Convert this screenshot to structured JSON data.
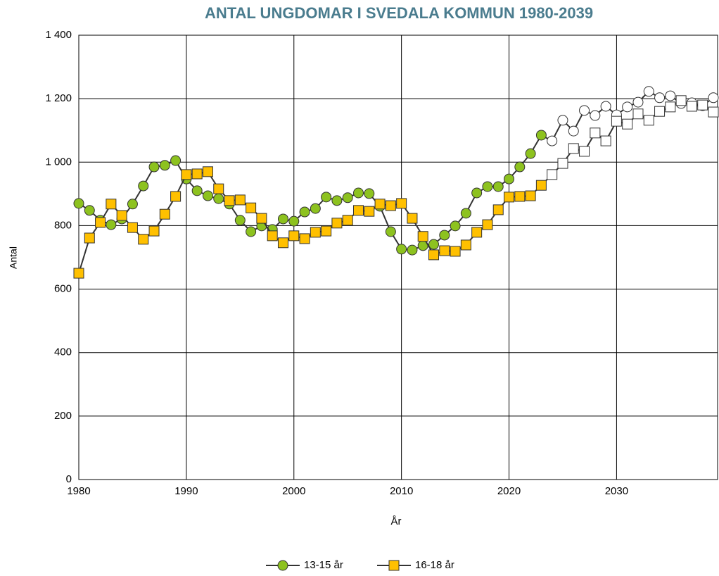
{
  "chart_data": {
    "type": "line",
    "title": "ANTAL UNGDOMAR I SVEDALA KOMMUN 1980-2039",
    "xlabel": "År",
    "ylabel": "Antal",
    "x": [
      1980,
      1981,
      1982,
      1983,
      1984,
      1985,
      1986,
      1987,
      1988,
      1989,
      1990,
      1991,
      1992,
      1993,
      1994,
      1995,
      1996,
      1997,
      1998,
      1999,
      2000,
      2001,
      2002,
      2003,
      2004,
      2005,
      2006,
      2007,
      2008,
      2009,
      2010,
      2011,
      2012,
      2013,
      2014,
      2015,
      2016,
      2017,
      2018,
      2019,
      2020,
      2021,
      2022,
      2023,
      2024,
      2025,
      2026,
      2027,
      2028,
      2029,
      2030,
      2031,
      2032,
      2033,
      2034,
      2035,
      2036,
      2037,
      2038,
      2039
    ],
    "forecast_start": 2024,
    "series": [
      {
        "name": "13-15 år",
        "color": "#8dc21f",
        "marker": "circle",
        "values": [
          870,
          848,
          817,
          803,
          821,
          868,
          925,
          985,
          990,
          1005,
          947,
          910,
          894,
          885,
          868,
          817,
          781,
          799,
          788,
          821,
          814,
          843,
          854,
          890,
          879,
          888,
          903,
          901,
          861,
          781,
          726,
          723,
          737,
          741,
          770,
          799,
          839,
          903,
          923,
          923,
          947,
          985,
          1027,
          1085,
          1067,
          1132,
          1098,
          1163,
          1147,
          1176,
          1149,
          1174,
          1189,
          1223,
          1203,
          1209,
          1185,
          1187,
          1178,
          1203
        ]
      },
      {
        "name": "16-18 år",
        "color": "#ffc000",
        "marker": "square",
        "values": [
          650,
          761,
          810,
          868,
          832,
          794,
          757,
          783,
          836,
          892,
          961,
          963,
          970,
          916,
          879,
          881,
          856,
          823,
          768,
          746,
          768,
          759,
          779,
          783,
          808,
          817,
          848,
          845,
          868,
          863,
          870,
          823,
          766,
          708,
          721,
          719,
          739,
          779,
          803,
          850,
          890,
          892,
          894,
          927,
          961,
          996,
          1043,
          1034,
          1092,
          1067,
          1129,
          1120,
          1152,
          1132,
          1160,
          1174,
          1194,
          1176,
          1180,
          1158
        ]
      }
    ],
    "xlim": [
      1980,
      2039
    ],
    "xticks": [
      1980,
      1990,
      2000,
      2010,
      2020,
      2030
    ],
    "ylim": [
      0,
      1400
    ],
    "yticks": [
      0,
      200,
      400,
      600,
      800,
      {
        "value": 1000,
        "label": "1 000"
      },
      {
        "value": 1200,
        "label": "1 200"
      },
      {
        "value": 1400,
        "label": "1 400"
      }
    ],
    "grid": true,
    "legend": "bottom"
  }
}
